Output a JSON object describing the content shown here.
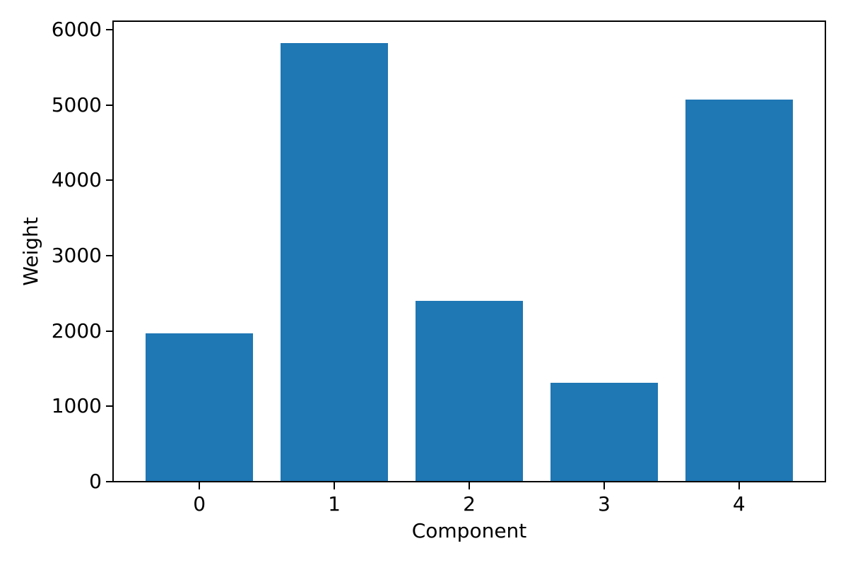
{
  "chart_data": {
    "type": "bar",
    "categories": [
      "0",
      "1",
      "2",
      "3",
      "4"
    ],
    "values": [
      1970,
      5820,
      2400,
      1310,
      5070
    ],
    "title": "",
    "xlabel": "Component",
    "ylabel": "Weight",
    "yticks": [
      0,
      1000,
      2000,
      3000,
      4000,
      5000,
      6000
    ],
    "ylim": [
      0,
      6111
    ],
    "xlim": [
      -0.64,
      4.64
    ],
    "bar_width": 0.8,
    "bar_color": "#1f77b4",
    "axis_color": "#000000",
    "background_color": "#ffffff",
    "grid": false,
    "legend_position": "none"
  }
}
